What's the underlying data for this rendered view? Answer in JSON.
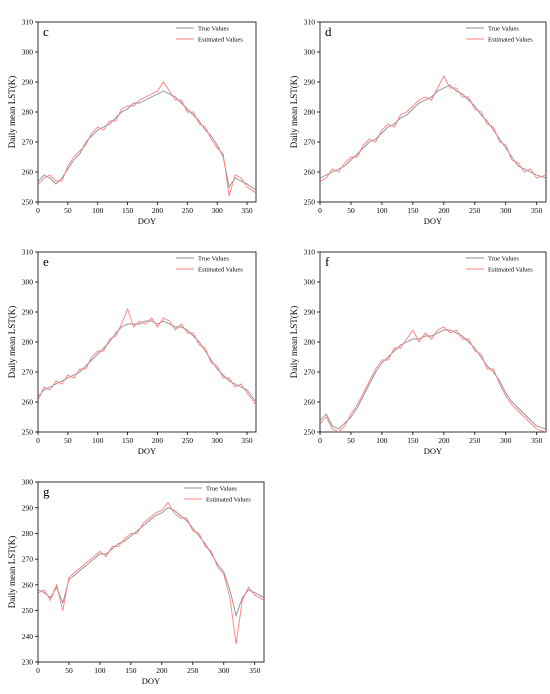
{
  "figure": {
    "background": "#ffffff"
  },
  "colors": {
    "true_series": "#8c8c8c",
    "estimated_series": "#ff7f7f",
    "axis": "#000000"
  },
  "chart_data": [
    {
      "id": "c",
      "type": "line",
      "panel_label": "c",
      "xlabel": "DOY",
      "ylabel": "Daily mean LST(K)",
      "xlim": [
        0,
        365
      ],
      "ylim": [
        250,
        310
      ],
      "xticks": [
        0,
        50,
        100,
        150,
        200,
        250,
        300,
        350
      ],
      "yticks": [
        250,
        260,
        270,
        280,
        290,
        300,
        310
      ],
      "legend": {
        "position": "top-right",
        "entries": [
          "True Values",
          "Estimated Values"
        ]
      },
      "grid": false,
      "series": [
        {
          "name": "True Values",
          "color": "#8c8c8c",
          "x": [
            1,
            10,
            20,
            30,
            40,
            50,
            60,
            70,
            80,
            90,
            100,
            110,
            120,
            130,
            140,
            150,
            160,
            170,
            180,
            190,
            200,
            210,
            220,
            230,
            240,
            250,
            260,
            270,
            280,
            290,
            300,
            310,
            320,
            330,
            340,
            350,
            365
          ],
          "values": [
            257,
            259,
            258,
            256,
            258,
            261,
            264,
            266,
            270,
            272,
            274,
            275,
            276,
            278,
            280,
            281,
            283,
            283,
            284,
            285,
            286,
            287,
            286,
            285,
            283,
            281,
            279,
            277,
            274,
            272,
            269,
            265,
            255,
            258,
            257,
            256,
            254
          ]
        },
        {
          "name": "Estimated Values",
          "color": "#ff7f7f",
          "x": [
            1,
            10,
            20,
            30,
            40,
            50,
            60,
            70,
            80,
            90,
            100,
            110,
            120,
            130,
            140,
            150,
            160,
            170,
            180,
            190,
            200,
            210,
            220,
            230,
            240,
            250,
            260,
            270,
            280,
            290,
            300,
            310,
            320,
            330,
            340,
            350,
            365
          ],
          "values": [
            256,
            258,
            259,
            257,
            257,
            262,
            265,
            267,
            269,
            273,
            275,
            274,
            277,
            277,
            281,
            282,
            282,
            284,
            285,
            286,
            287,
            290,
            287,
            284,
            284,
            280,
            280,
            276,
            275,
            271,
            268,
            266,
            252,
            259,
            258,
            255,
            253
          ]
        }
      ]
    },
    {
      "id": "d",
      "type": "line",
      "panel_label": "d",
      "xlabel": "DOY",
      "ylabel": "Daily mean LST(K)",
      "xlim": [
        0,
        365
      ],
      "ylim": [
        250,
        310
      ],
      "xticks": [
        0,
        50,
        100,
        150,
        200,
        250,
        300,
        350
      ],
      "yticks": [
        250,
        260,
        270,
        280,
        290,
        300,
        310
      ],
      "legend": {
        "position": "top-right",
        "entries": [
          "True Values",
          "Estimated Values"
        ]
      },
      "grid": false,
      "series": [
        {
          "name": "True Values",
          "color": "#8c8c8c",
          "x": [
            1,
            10,
            20,
            30,
            40,
            50,
            60,
            70,
            80,
            90,
            100,
            110,
            120,
            130,
            140,
            150,
            160,
            170,
            180,
            190,
            200,
            210,
            220,
            230,
            240,
            250,
            260,
            270,
            280,
            290,
            300,
            310,
            320,
            330,
            340,
            350,
            365
          ],
          "values": [
            258,
            259,
            260,
            261,
            262,
            264,
            266,
            268,
            270,
            271,
            273,
            275,
            276,
            278,
            279,
            281,
            283,
            284,
            285,
            287,
            288,
            289,
            287,
            286,
            284,
            282,
            279,
            277,
            274,
            271,
            268,
            265,
            262,
            261,
            260,
            259,
            258
          ]
        },
        {
          "name": "Estimated Values",
          "color": "#ff7f7f",
          "x": [
            1,
            10,
            20,
            30,
            40,
            50,
            60,
            70,
            80,
            90,
            100,
            110,
            120,
            130,
            140,
            150,
            160,
            170,
            180,
            190,
            200,
            210,
            220,
            230,
            240,
            250,
            260,
            270,
            280,
            290,
            300,
            310,
            320,
            330,
            340,
            350,
            365
          ],
          "values": [
            257,
            258,
            261,
            260,
            263,
            265,
            265,
            269,
            271,
            270,
            274,
            276,
            275,
            279,
            280,
            282,
            284,
            285,
            284,
            288,
            292,
            288,
            288,
            285,
            285,
            281,
            280,
            276,
            275,
            270,
            269,
            264,
            263,
            260,
            261,
            258,
            259
          ]
        }
      ]
    },
    {
      "id": "e",
      "type": "line",
      "panel_label": "e",
      "xlabel": "DOY",
      "ylabel": "Daily mean LST(K)",
      "xlim": [
        0,
        365
      ],
      "ylim": [
        250,
        310
      ],
      "xticks": [
        0,
        50,
        100,
        150,
        200,
        250,
        300,
        350
      ],
      "yticks": [
        250,
        260,
        270,
        280,
        290,
        300,
        310
      ],
      "legend": {
        "position": "top-right",
        "entries": [
          "True Values",
          "Estimated Values"
        ]
      },
      "grid": false,
      "series": [
        {
          "name": "True Values",
          "color": "#8c8c8c",
          "x": [
            1,
            10,
            20,
            30,
            40,
            50,
            60,
            70,
            80,
            90,
            100,
            110,
            120,
            130,
            140,
            150,
            160,
            170,
            180,
            190,
            200,
            210,
            220,
            230,
            240,
            250,
            260,
            270,
            280,
            290,
            300,
            310,
            320,
            330,
            340,
            350,
            365
          ],
          "values": [
            262,
            264,
            265,
            266,
            267,
            268,
            269,
            270,
            272,
            274,
            276,
            278,
            280,
            283,
            285,
            286,
            286,
            286,
            287,
            287,
            286,
            287,
            286,
            285,
            285,
            284,
            282,
            280,
            277,
            274,
            271,
            269,
            267,
            266,
            265,
            264,
            260
          ]
        },
        {
          "name": "Estimated Values",
          "color": "#ff7f7f",
          "x": [
            1,
            10,
            20,
            30,
            40,
            50,
            60,
            70,
            80,
            90,
            100,
            110,
            120,
            130,
            140,
            150,
            160,
            170,
            180,
            190,
            200,
            210,
            220,
            230,
            240,
            250,
            260,
            270,
            280,
            290,
            300,
            310,
            320,
            330,
            340,
            350,
            365
          ],
          "values": [
            261,
            265,
            264,
            267,
            266,
            269,
            268,
            271,
            271,
            275,
            277,
            277,
            281,
            282,
            286,
            291,
            285,
            287,
            286,
            288,
            285,
            288,
            287,
            284,
            286,
            283,
            283,
            279,
            278,
            273,
            272,
            268,
            268,
            265,
            266,
            263,
            259
          ]
        }
      ]
    },
    {
      "id": "f",
      "type": "line",
      "panel_label": "f",
      "xlabel": "DOY",
      "ylabel": "Daily mean LST(K)",
      "xlim": [
        0,
        365
      ],
      "ylim": [
        250,
        310
      ],
      "xticks": [
        0,
        50,
        100,
        150,
        200,
        250,
        300,
        350
      ],
      "yticks": [
        250,
        260,
        270,
        280,
        290,
        300,
        310
      ],
      "legend": {
        "position": "top-right",
        "entries": [
          "True Values",
          "Estimated Values"
        ]
      },
      "grid": false,
      "series": [
        {
          "name": "True Values",
          "color": "#8c8c8c",
          "x": [
            1,
            10,
            20,
            30,
            40,
            50,
            60,
            70,
            80,
            90,
            100,
            110,
            120,
            130,
            140,
            150,
            160,
            170,
            180,
            190,
            200,
            210,
            220,
            230,
            240,
            250,
            260,
            270,
            280,
            290,
            300,
            310,
            320,
            330,
            340,
            350,
            365
          ],
          "values": [
            254,
            256,
            252,
            251,
            253,
            255,
            258,
            262,
            266,
            270,
            273,
            275,
            277,
            279,
            280,
            281,
            281,
            282,
            282,
            283,
            284,
            284,
            283,
            282,
            280,
            278,
            275,
            272,
            270,
            267,
            263,
            260,
            258,
            256,
            254,
            252,
            251
          ]
        },
        {
          "name": "Estimated Values",
          "color": "#ff7f7f",
          "x": [
            1,
            10,
            20,
            30,
            40,
            50,
            60,
            70,
            80,
            90,
            100,
            110,
            120,
            130,
            140,
            150,
            160,
            170,
            180,
            190,
            200,
            210,
            220,
            230,
            240,
            250,
            260,
            270,
            280,
            290,
            300,
            310,
            320,
            330,
            340,
            350,
            365
          ],
          "values": [
            253,
            255,
            251,
            250,
            252,
            256,
            259,
            263,
            267,
            271,
            274,
            274,
            278,
            278,
            281,
            284,
            280,
            283,
            281,
            284,
            285,
            283,
            284,
            281,
            281,
            277,
            276,
            271,
            271,
            266,
            262,
            259,
            257,
            255,
            253,
            251,
            250
          ]
        }
      ]
    },
    {
      "id": "g",
      "type": "line",
      "panel_label": "g",
      "xlabel": "DOY",
      "ylabel": "Daily mean LST(K)",
      "xlim": [
        0,
        365
      ],
      "ylim": [
        230,
        300
      ],
      "xticks": [
        0,
        50,
        100,
        150,
        200,
        250,
        300,
        350
      ],
      "yticks": [
        230,
        240,
        250,
        260,
        270,
        280,
        290,
        300
      ],
      "legend": {
        "position": "top-right",
        "entries": [
          "True Values",
          "Estimated Values"
        ]
      },
      "grid": false,
      "series": [
        {
          "name": "True Values",
          "color": "#8c8c8c",
          "x": [
            1,
            10,
            20,
            30,
            40,
            50,
            60,
            70,
            80,
            90,
            100,
            110,
            120,
            130,
            140,
            150,
            160,
            170,
            180,
            190,
            200,
            210,
            220,
            230,
            240,
            250,
            260,
            270,
            280,
            290,
            300,
            310,
            320,
            330,
            340,
            350,
            365
          ],
          "values": [
            258,
            257,
            255,
            259,
            253,
            262,
            264,
            266,
            268,
            270,
            272,
            272,
            274,
            276,
            277,
            279,
            281,
            283,
            285,
            287,
            288,
            290,
            289,
            287,
            285,
            282,
            279,
            276,
            272,
            268,
            265,
            258,
            248,
            255,
            258,
            257,
            255
          ]
        },
        {
          "name": "Estimated Values",
          "color": "#ff7f7f",
          "x": [
            1,
            10,
            20,
            30,
            40,
            50,
            60,
            70,
            80,
            90,
            100,
            110,
            120,
            130,
            140,
            150,
            160,
            170,
            180,
            190,
            200,
            210,
            220,
            230,
            240,
            250,
            260,
            270,
            280,
            290,
            300,
            310,
            320,
            330,
            340,
            350,
            365
          ],
          "values": [
            257,
            258,
            254,
            260,
            250,
            263,
            265,
            267,
            269,
            271,
            273,
            271,
            275,
            275,
            278,
            280,
            280,
            284,
            286,
            288,
            289,
            292,
            288,
            286,
            286,
            281,
            280,
            275,
            273,
            267,
            264,
            255,
            237,
            254,
            259,
            256,
            254
          ]
        }
      ]
    }
  ]
}
